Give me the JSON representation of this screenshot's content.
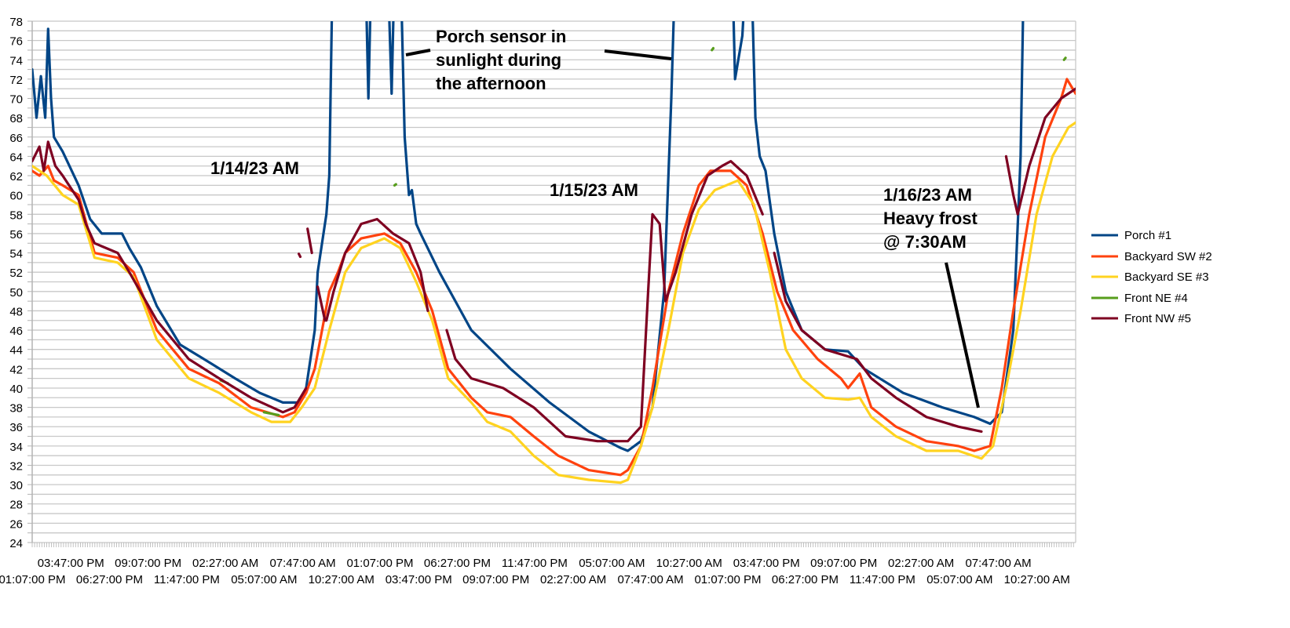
{
  "chart_data": {
    "type": "line",
    "title": "",
    "xlabel": "",
    "ylabel": "",
    "x_units": "hours since first sample",
    "xlim": [
      0,
      72
    ],
    "ylim": [
      24,
      78
    ],
    "y_ticks": [
      "24",
      "26",
      "28",
      "30",
      "32",
      "34",
      "36",
      "38",
      "40",
      "42",
      "44",
      "46",
      "48",
      "50",
      "52",
      "54",
      "56",
      "58",
      "60",
      "62",
      "64",
      "66",
      "68",
      "70",
      "72",
      "74",
      "76",
      "78"
    ],
    "x_tick_step_hours": 2.6667,
    "x_tick_labels": [
      "01:07:00 PM",
      "03:47:00 PM",
      "06:27:00 PM",
      "09:07:00 PM",
      "11:47:00 PM",
      "02:27:00 AM",
      "05:07:00 AM",
      "07:47:00 AM",
      "10:27:00 AM",
      "01:07:00 PM",
      "03:47:00 PM",
      "06:27:00 PM",
      "09:07:00 PM",
      "11:47:00 PM",
      "02:27:00 AM",
      "05:07:00 AM",
      "07:47:00 AM",
      "10:27:00 AM",
      "01:07:00 PM",
      "03:47:00 PM",
      "06:27:00 PM",
      "09:07:00 PM",
      "11:47:00 PM",
      "02:27:00 AM",
      "05:07:00 AM",
      "07:47:00 AM",
      "10:27:00 AM"
    ],
    "grid": true,
    "legend_position": "right",
    "series": [
      {
        "name": "Porch #1",
        "color": "#004586",
        "points": [
          [
            0,
            73
          ],
          [
            0.3,
            68
          ],
          [
            0.6,
            72.3
          ],
          [
            0.9,
            68
          ],
          [
            1.1,
            77.2
          ],
          [
            1.3,
            70
          ],
          [
            1.5,
            66
          ],
          [
            2.1,
            64.5
          ],
          [
            3.2,
            61
          ],
          [
            4,
            57.5
          ],
          [
            4.8,
            56
          ],
          [
            6.2,
            56
          ],
          [
            6.7,
            54.5
          ],
          [
            7.5,
            52.5
          ],
          [
            8.6,
            48.5
          ],
          [
            10.2,
            44.5
          ],
          [
            12.4,
            42.5
          ],
          [
            14,
            41
          ],
          [
            15.7,
            39.5
          ],
          [
            17.3,
            38.5
          ],
          [
            18.4,
            38.5
          ],
          [
            18.9,
            40
          ],
          [
            19.5,
            46
          ],
          [
            19.7,
            52
          ],
          [
            20.3,
            58
          ],
          [
            20.5,
            62
          ],
          [
            20.8,
            90
          ],
          [
            22.9,
            90
          ],
          [
            23.2,
            70
          ],
          [
            23.5,
            90
          ],
          [
            24.4,
            90
          ],
          [
            24.8,
            70.5
          ],
          [
            25.1,
            90
          ],
          [
            25.4,
            85
          ],
          [
            25.7,
            66
          ],
          [
            26,
            60
          ],
          [
            26.2,
            60.5
          ],
          [
            26.5,
            57
          ],
          [
            26.8,
            56
          ],
          [
            28.1,
            52
          ],
          [
            30.3,
            46
          ],
          [
            33,
            42
          ],
          [
            35.7,
            38.5
          ],
          [
            38.4,
            35.5
          ],
          [
            40.6,
            33.8
          ],
          [
            41.1,
            33.5
          ],
          [
            42,
            34.5
          ],
          [
            42.8,
            38
          ],
          [
            43.6,
            50
          ],
          [
            44.1,
            70
          ],
          [
            44.5,
            90
          ],
          [
            48.2,
            90
          ],
          [
            48.5,
            72
          ],
          [
            49,
            76.5
          ],
          [
            49.5,
            90
          ],
          [
            49.9,
            68
          ],
          [
            50.2,
            64
          ],
          [
            50.6,
            62.5
          ],
          [
            51.2,
            56
          ],
          [
            52,
            50
          ],
          [
            53.1,
            46
          ],
          [
            54.7,
            44
          ],
          [
            56.3,
            43.8
          ],
          [
            57.4,
            42
          ],
          [
            60.1,
            39.5
          ],
          [
            62.8,
            38
          ],
          [
            65,
            37
          ],
          [
            66.1,
            36.3
          ],
          [
            66.9,
            37.5
          ],
          [
            67.7,
            46
          ],
          [
            68.2,
            64
          ],
          [
            68.5,
            90
          ]
        ]
      },
      {
        "name": "Backyard SW #2",
        "color": "#ff420e",
        "points": [
          [
            0,
            62.5
          ],
          [
            0.5,
            62
          ],
          [
            1.1,
            63
          ],
          [
            1.5,
            61.5
          ],
          [
            2.1,
            61
          ],
          [
            3.2,
            60
          ],
          [
            4.3,
            54
          ],
          [
            5.9,
            53.5
          ],
          [
            7,
            52
          ],
          [
            8.6,
            46
          ],
          [
            10.8,
            42
          ],
          [
            12.9,
            40.5
          ],
          [
            15.1,
            38
          ],
          [
            17.3,
            37
          ],
          [
            18.1,
            37.5
          ],
          [
            18.9,
            39.5
          ],
          [
            19.5,
            42
          ],
          [
            20,
            46
          ],
          [
            20.5,
            50
          ],
          [
            21.1,
            52
          ],
          [
            21.6,
            54
          ],
          [
            22.7,
            55.5
          ],
          [
            24.3,
            56
          ],
          [
            25.4,
            55
          ],
          [
            26.5,
            52
          ],
          [
            27.6,
            48
          ],
          [
            28.7,
            42
          ],
          [
            30.3,
            39
          ],
          [
            31.4,
            37.5
          ],
          [
            33,
            37
          ],
          [
            34.6,
            35
          ],
          [
            36.3,
            33
          ],
          [
            38.4,
            31.5
          ],
          [
            40.6,
            31
          ],
          [
            41.1,
            31.5
          ],
          [
            42,
            34
          ],
          [
            42.8,
            40
          ],
          [
            43.9,
            50
          ],
          [
            44.9,
            56
          ],
          [
            46,
            61
          ],
          [
            46.8,
            62.5
          ],
          [
            48.2,
            62.5
          ],
          [
            49.3,
            61
          ],
          [
            50.4,
            56
          ],
          [
            51.4,
            50
          ],
          [
            52.5,
            46
          ],
          [
            54.2,
            43
          ],
          [
            55.8,
            41
          ],
          [
            56.3,
            40
          ],
          [
            57.1,
            41.5
          ],
          [
            57.9,
            38
          ],
          [
            59.6,
            36
          ],
          [
            61.7,
            34.5
          ],
          [
            63.9,
            34
          ],
          [
            65,
            33.5
          ],
          [
            66.1,
            34
          ],
          [
            66.9,
            40
          ],
          [
            67.7,
            48
          ],
          [
            68.8,
            58
          ],
          [
            69.9,
            66
          ],
          [
            71,
            70
          ],
          [
            71.4,
            72
          ],
          [
            72,
            70.5
          ]
        ]
      },
      {
        "name": "Backyard SE #3",
        "color": "#ffd320",
        "points": [
          [
            0,
            63
          ],
          [
            1,
            62
          ],
          [
            2.1,
            60
          ],
          [
            3.2,
            59
          ],
          [
            4.3,
            53.5
          ],
          [
            5.9,
            53
          ],
          [
            7,
            51.5
          ],
          [
            8.6,
            45
          ],
          [
            10.8,
            41
          ],
          [
            12.9,
            39.5
          ],
          [
            15.1,
            37.5
          ],
          [
            16.5,
            36.5
          ],
          [
            17.8,
            36.5
          ],
          [
            18.6,
            38
          ],
          [
            19.5,
            40
          ],
          [
            20.5,
            46
          ],
          [
            21.6,
            52
          ],
          [
            22.7,
            54.5
          ],
          [
            24.3,
            55.5
          ],
          [
            25.4,
            54.5
          ],
          [
            26.5,
            51
          ],
          [
            27.6,
            47
          ],
          [
            28.7,
            41
          ],
          [
            30.3,
            38.5
          ],
          [
            31.4,
            36.5
          ],
          [
            33,
            35.5
          ],
          [
            34.6,
            33
          ],
          [
            36.3,
            31
          ],
          [
            38.4,
            30.5
          ],
          [
            40.6,
            30.2
          ],
          [
            41.1,
            30.5
          ],
          [
            42,
            34
          ],
          [
            42.8,
            38
          ],
          [
            43.9,
            46
          ],
          [
            44.9,
            54
          ],
          [
            46,
            58.5
          ],
          [
            47.1,
            60.5
          ],
          [
            48.7,
            61.5
          ],
          [
            49.8,
            59
          ],
          [
            50.9,
            52
          ],
          [
            52,
            44
          ],
          [
            53.1,
            41
          ],
          [
            54.7,
            39
          ],
          [
            56.3,
            38.8
          ],
          [
            57.1,
            39
          ],
          [
            57.9,
            37
          ],
          [
            59.6,
            35
          ],
          [
            61.7,
            33.5
          ],
          [
            63.9,
            33.5
          ],
          [
            65.5,
            32.7
          ],
          [
            66.3,
            34
          ],
          [
            67.2,
            40
          ],
          [
            68.2,
            48
          ],
          [
            69.3,
            58
          ],
          [
            70.4,
            64
          ],
          [
            71.5,
            67
          ],
          [
            72,
            67.5
          ]
        ]
      },
      {
        "name": "Front NE #4",
        "color": "#579d1c",
        "points": [
          [
            13,
            40.8
          ],
          [
            13.5,
            40.5
          ],
          null,
          [
            16,
            37.5
          ],
          [
            17,
            37.2
          ],
          null,
          [
            25,
            61
          ],
          [
            25.1,
            61.1
          ],
          null,
          [
            46.9,
            75
          ],
          [
            47,
            75.2
          ],
          null,
          [
            71.2,
            74
          ],
          [
            71.3,
            74.2
          ]
        ]
      },
      {
        "name": "Front NW #5",
        "color": "#7e0021",
        "points": [
          [
            0,
            63.5
          ],
          [
            0.5,
            65
          ],
          [
            0.8,
            62.5
          ],
          [
            1.1,
            65.5
          ],
          [
            1.6,
            63
          ],
          [
            2.1,
            62
          ],
          [
            3.2,
            59.5
          ],
          [
            3.7,
            57
          ],
          [
            4.3,
            55
          ],
          [
            5.9,
            54
          ],
          [
            6.7,
            52
          ],
          [
            8.6,
            47
          ],
          [
            10.8,
            43
          ],
          [
            12.9,
            41
          ],
          [
            15.1,
            39
          ],
          [
            17.3,
            37.5
          ],
          [
            18.1,
            38
          ],
          [
            18.9,
            40
          ],
          null,
          [
            18.4,
            53.9
          ],
          [
            18.5,
            53.6
          ],
          null,
          [
            19,
            56.5
          ],
          [
            19.3,
            54
          ],
          null,
          [
            19.7,
            50.5
          ],
          [
            20.2,
            47
          ],
          null,
          [
            20.3,
            47
          ],
          [
            20.8,
            50
          ],
          [
            21.6,
            54
          ],
          [
            22.7,
            57
          ],
          [
            23.8,
            57.5
          ],
          [
            24.9,
            56
          ],
          [
            26,
            55
          ],
          [
            26.8,
            52
          ],
          [
            27.3,
            48
          ],
          null,
          [
            28.6,
            46
          ],
          [
            29.2,
            43
          ],
          [
            30.3,
            41
          ],
          [
            32.5,
            40
          ],
          [
            34.6,
            38
          ],
          [
            36.8,
            35
          ],
          [
            39,
            34.5
          ],
          [
            41.1,
            34.5
          ],
          [
            42,
            36
          ],
          [
            42.5,
            50
          ],
          [
            42.8,
            58
          ],
          [
            43.3,
            57
          ],
          [
            43.7,
            49
          ],
          [
            44.4,
            52
          ],
          [
            45.5,
            58
          ],
          [
            46.6,
            62
          ],
          [
            47.6,
            63
          ],
          [
            48.2,
            63.5
          ],
          [
            49.3,
            62
          ],
          [
            50.4,
            58
          ],
          null,
          [
            51.2,
            54
          ],
          [
            52,
            49
          ],
          [
            53.1,
            46
          ],
          [
            54.7,
            44
          ],
          [
            55.8,
            43.5
          ],
          [
            56.9,
            43
          ],
          [
            57.9,
            41
          ],
          [
            59.6,
            39
          ],
          [
            61.7,
            37
          ],
          [
            63.9,
            36
          ],
          [
            65.5,
            35.5
          ],
          null,
          [
            67.2,
            64
          ],
          [
            67.7,
            60
          ],
          [
            68,
            58
          ],
          [
            68.8,
            63
          ],
          [
            69.9,
            68
          ],
          [
            71,
            70
          ],
          [
            72,
            71
          ]
        ]
      }
    ],
    "annotations": {
      "porch_note": [
        "Porch sensor in",
        "sunlight during",
        "the afternoon"
      ],
      "day1": "1/14/23 AM",
      "day2": "1/15/23 AM",
      "day3": [
        "1/16/23 AM",
        "Heavy frost",
        "@ 7:30AM"
      ]
    }
  }
}
